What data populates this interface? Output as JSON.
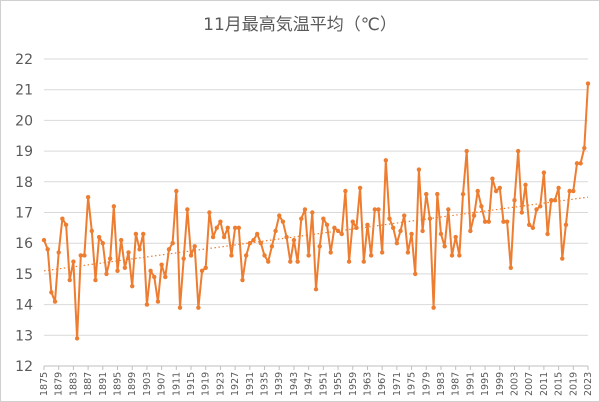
{
  "chart_data": {
    "type": "line",
    "title": "11月最高気温平均（℃）",
    "xlabel": "",
    "ylabel": "",
    "ylim": [
      12,
      22
    ],
    "yticks": [
      12,
      13,
      14,
      15,
      16,
      17,
      18,
      19,
      20,
      21,
      22
    ],
    "xrange": [
      1875,
      2023
    ],
    "xticks": [
      1875,
      1879,
      1883,
      1887,
      1891,
      1895,
      1899,
      1903,
      1907,
      1911,
      1915,
      1919,
      1923,
      1927,
      1931,
      1935,
      1939,
      1943,
      1947,
      1951,
      1955,
      1959,
      1963,
      1967,
      1971,
      1975,
      1979,
      1983,
      1987,
      1991,
      1995,
      1999,
      2003,
      2007,
      2011,
      2015,
      2019,
      2023
    ],
    "grid": "horizontal",
    "legend": "none",
    "colors": {
      "series": "#ED7D31",
      "gridline": "#d9d9d9",
      "text": "#595959"
    },
    "series": [
      {
        "x": [
          1875,
          1876,
          1877,
          1878,
          1879,
          1880,
          1881,
          1882,
          1883,
          1884,
          1885,
          1886,
          1887,
          1888,
          1889,
          1890,
          1891,
          1892,
          1893,
          1894,
          1895,
          1896,
          1897,
          1898,
          1899,
          1900,
          1901,
          1902,
          1903,
          1904,
          1905,
          1906,
          1907,
          1908,
          1909,
          1910,
          1911,
          1912,
          1913,
          1914,
          1915,
          1916,
          1917,
          1918,
          1919,
          1920,
          1921,
          1922,
          1923,
          1924,
          1925,
          1926,
          1927,
          1928,
          1929,
          1930,
          1931,
          1932,
          1933,
          1934,
          1935,
          1936,
          1937,
          1938,
          1939,
          1940,
          1941,
          1942,
          1943,
          1944,
          1945,
          1946,
          1947,
          1948,
          1949,
          1950,
          1951,
          1952,
          1953,
          1954,
          1955,
          1956,
          1957,
          1958,
          1959,
          1960,
          1961,
          1962,
          1963,
          1964,
          1965,
          1966,
          1967,
          1968,
          1969,
          1970,
          1971,
          1972,
          1973,
          1974,
          1975,
          1976,
          1977,
          1978,
          1979,
          1980,
          1981,
          1982,
          1983,
          1984,
          1985,
          1986,
          1987,
          1988,
          1989,
          1990,
          1991,
          1992,
          1993,
          1994,
          1995,
          1996,
          1997,
          1998,
          1999,
          2000,
          2001,
          2002,
          2003,
          2004,
          2005,
          2006,
          2007,
          2008,
          2009,
          2010,
          2011,
          2012,
          2013,
          2014,
          2015,
          2016,
          2017,
          2018,
          2019,
          2020,
          2021,
          2022,
          2023
        ],
        "values": [
          16.1,
          15.8,
          14.4,
          14.1,
          15.7,
          16.8,
          16.6,
          14.8,
          15.4,
          12.9,
          15.6,
          15.6,
          17.5,
          16.4,
          14.8,
          16.2,
          16.0,
          15.0,
          15.5,
          17.2,
          15.1,
          16.1,
          15.2,
          15.7,
          14.6,
          16.3,
          15.8,
          16.3,
          14.0,
          15.1,
          14.9,
          14.1,
          15.3,
          14.9,
          15.8,
          16.0,
          17.7,
          13.9,
          15.5,
          17.1,
          15.6,
          15.9,
          13.9,
          15.1,
          15.2,
          17.0,
          16.2,
          16.5,
          16.7,
          16.2,
          16.5,
          15.6,
          16.5,
          16.5,
          14.8,
          15.6,
          16.0,
          16.1,
          16.3,
          16.0,
          15.6,
          15.4,
          15.9,
          16.4,
          16.9,
          16.7,
          16.2,
          15.4,
          16.1,
          15.4,
          16.8,
          17.1,
          15.6,
          17.0,
          14.5,
          15.9,
          16.8,
          16.6,
          15.7,
          16.5,
          16.4,
          16.3,
          17.7,
          15.4,
          16.7,
          16.5,
          17.8,
          15.4,
          16.6,
          15.6,
          17.1,
          17.1,
          15.7,
          18.7,
          16.8,
          16.5,
          16.0,
          16.4,
          16.9,
          15.7,
          16.3,
          15.0,
          18.4,
          16.4,
          17.6,
          16.8,
          13.9,
          17.6,
          16.3,
          15.9,
          17.1,
          15.6,
          16.2,
          15.6,
          17.6,
          19.0,
          16.4,
          16.9,
          17.7,
          17.2,
          16.7,
          16.7,
          18.1,
          17.7,
          17.8,
          16.7,
          16.7,
          15.2,
          17.4,
          19.0,
          17.0,
          17.9,
          16.6,
          16.5,
          17.1,
          17.2,
          18.3,
          16.3,
          17.4,
          17.4,
          17.8,
          15.5,
          16.6,
          17.7,
          17.7,
          18.6,
          18.6,
          19.1,
          21.2
        ]
      }
    ],
    "trendline": {
      "style": "dotted",
      "start": [
        1875,
        15.1
      ],
      "end": [
        2023,
        17.5
      ]
    }
  }
}
